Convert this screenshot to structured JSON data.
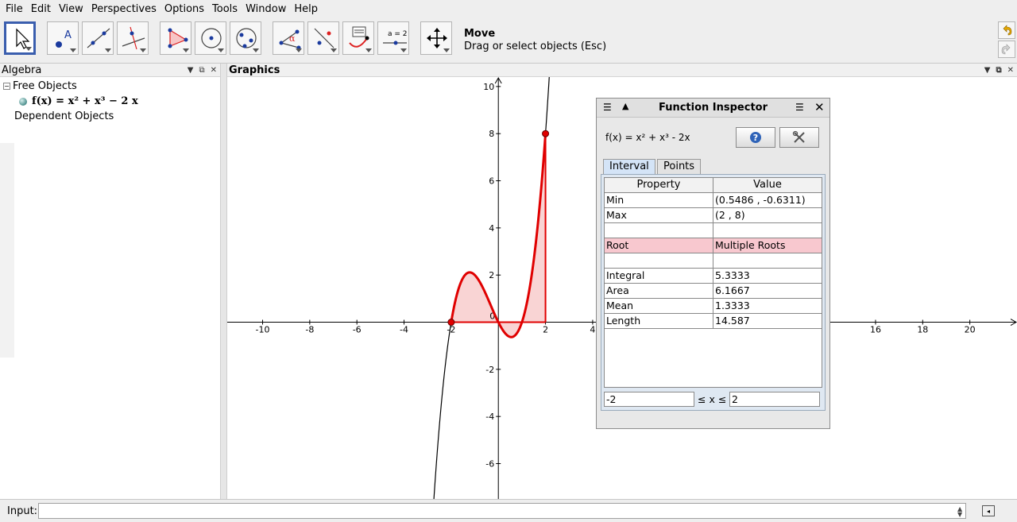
{
  "menu": [
    "File",
    "Edit",
    "View",
    "Perspectives",
    "Options",
    "Tools",
    "Window",
    "Help"
  ],
  "toolbar": {
    "tools": [
      {
        "name": "move-tool-icon",
        "selected": true
      },
      {
        "name": "point-tool-icon"
      },
      {
        "name": "line-tool-icon"
      },
      {
        "name": "perpendicular-tool-icon"
      },
      {
        "name": "polygon-tool-icon"
      },
      {
        "name": "circle-tool-icon"
      },
      {
        "name": "conic-tool-icon"
      },
      {
        "name": "angle-tool-icon"
      },
      {
        "name": "reflect-tool-icon"
      },
      {
        "name": "text-tool-icon"
      },
      {
        "name": "slider-tool-icon"
      },
      {
        "name": "move-graphics-tool-icon"
      }
    ],
    "slider_label": "a = 2",
    "active_title": "Move",
    "active_help": "Drag or select objects (Esc)"
  },
  "algebra": {
    "title": "Algebra",
    "free_objects": "Free Objects",
    "function": "f(x) = x² + x³ − 2 x",
    "dependent_objects": "Dependent Objects"
  },
  "graphics": {
    "title": "Graphics",
    "x_ticks": [
      "-10",
      "-8",
      "-6",
      "-4",
      "-2",
      "0",
      "2",
      "4",
      "16",
      "18",
      "20"
    ],
    "y_ticks": [
      "10",
      "8",
      "6",
      "4",
      "2",
      "-2",
      "-4",
      "-6"
    ]
  },
  "chart_data": {
    "type": "line",
    "function": "x^2 + x^3 - 2x",
    "xlim": [
      -11.5,
      22
    ],
    "ylim": [
      -7.5,
      10.4
    ],
    "interval": [
      -2,
      2
    ],
    "points": [
      {
        "x": -2,
        "y": 0
      },
      {
        "x": 2,
        "y": 8
      }
    ],
    "colors": {
      "curve": "#000000",
      "highlight": "#e00000",
      "fill": "#f9d4d4"
    }
  },
  "inspector": {
    "title": "Function Inspector",
    "function_label": "f(x) = x² + x³ - 2x",
    "tabs": [
      "Interval",
      "Points"
    ],
    "columns": [
      "Property",
      "Value"
    ],
    "rows": [
      {
        "property": "Min",
        "value": "(0.5486 , -0.6311)"
      },
      {
        "property": "Max",
        "value": "(2 , 8)"
      },
      {
        "property": "",
        "value": ""
      },
      {
        "property": "Root",
        "value": "Multiple Roots"
      },
      {
        "property": "",
        "value": ""
      },
      {
        "property": "Integral",
        "value": "5.3333"
      },
      {
        "property": "Area",
        "value": "6.1667"
      },
      {
        "property": "Mean",
        "value": "1.3333"
      },
      {
        "property": "Length",
        "value": "14.587"
      }
    ],
    "interval_min": "-2",
    "interval_label": "≤ x ≤",
    "interval_max": "2"
  },
  "input": {
    "label": "Input:",
    "value": ""
  }
}
